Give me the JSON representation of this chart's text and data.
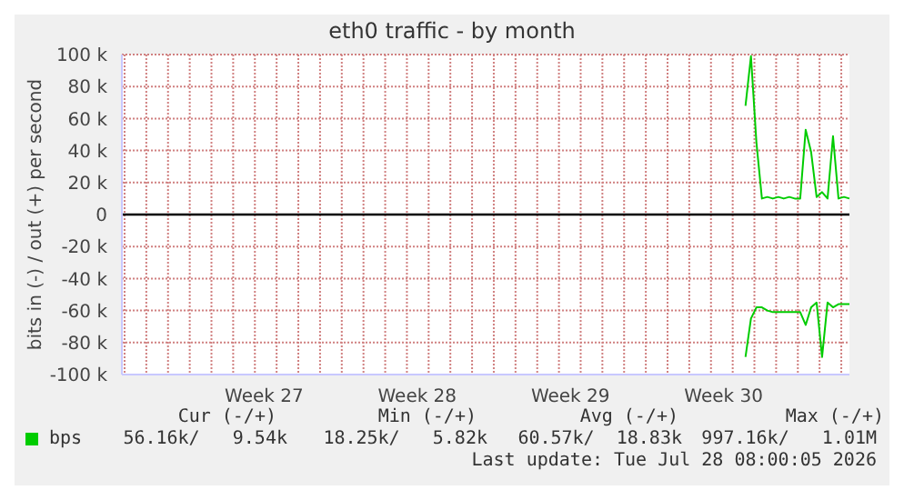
{
  "chart_data": {
    "type": "line",
    "title": "eth0 traffic - by month",
    "ylabel": "bits in (-) / out (+) per second",
    "categories": [
      null,
      null,
      null,
      null,
      null,
      null,
      null,
      null,
      null,
      null,
      null,
      null,
      null,
      null,
      null,
      null,
      null,
      null,
      null,
      null,
      null,
      null,
      null,
      null,
      null,
      null,
      "Week 27",
      null,
      null,
      null,
      null,
      null,
      null,
      null,
      null,
      null,
      null,
      null,
      null,
      null,
      null,
      null,
      null,
      null,
      null,
      null,
      null,
      null,
      null,
      null,
      null,
      null,
      null,
      null,
      "Week 28",
      null,
      null,
      null,
      null,
      null,
      null,
      null,
      null,
      null,
      null,
      null,
      null,
      null,
      null,
      null,
      null,
      null,
      null,
      null,
      null,
      null,
      null,
      null,
      null,
      null,
      null,
      null,
      "Week 29",
      null,
      null,
      null,
      null,
      null,
      null,
      null,
      null,
      null,
      null,
      null,
      null,
      null,
      null,
      null,
      null,
      null,
      null,
      null,
      null,
      null,
      null,
      null,
      null,
      null,
      null,
      null,
      "Week 30",
      null,
      null,
      null,
      null,
      null,
      null,
      null,
      null,
      null,
      null,
      null,
      null,
      null,
      null,
      null,
      null,
      null,
      null,
      null,
      null,
      null,
      null,
      null
    ],
    "ylim": [
      -100000,
      100000
    ],
    "yticks": [
      {
        "value": -100000,
        "label": "-100 k"
      },
      {
        "value": -80000,
        "label": "-80 k"
      },
      {
        "value": -60000,
        "label": "-60 k"
      },
      {
        "value": -40000,
        "label": "-40 k"
      },
      {
        "value": -20000,
        "label": "-20 k"
      },
      0,
      {
        "value": 20000,
        "label": "20 k"
      },
      {
        "value": 40000,
        "label": "40 k"
      },
      {
        "value": 60000,
        "label": "60 k"
      },
      {
        "value": 80000,
        "label": "80 k"
      },
      {
        "value": 100000,
        "label": "100 k"
      }
    ],
    "grid": true,
    "legend": "bottom",
    "marker": "none",
    "line_style": "solid",
    "ref_lines": [
      {
        "axis": "y",
        "value": 0,
        "color": "#000000"
      }
    ],
    "series": [
      {
        "name": "bps",
        "color": "#00cc00",
        "values": [
          null,
          null,
          null,
          null,
          null,
          null,
          null,
          null,
          null,
          null,
          null,
          null,
          null,
          null,
          null,
          null,
          null,
          null,
          null,
          null,
          null,
          null,
          null,
          null,
          null,
          null,
          null,
          null,
          null,
          null,
          null,
          null,
          null,
          null,
          null,
          null,
          null,
          null,
          null,
          null,
          null,
          null,
          null,
          null,
          null,
          null,
          null,
          null,
          null,
          null,
          null,
          null,
          null,
          null,
          null,
          null,
          null,
          null,
          null,
          null,
          null,
          null,
          null,
          null,
          null,
          null,
          null,
          null,
          null,
          null,
          null,
          null,
          null,
          null,
          null,
          null,
          null,
          null,
          null,
          null,
          null,
          null,
          null,
          null,
          null,
          null,
          null,
          null,
          null,
          null,
          null,
          null,
          null,
          null,
          null,
          null,
          null,
          null,
          null,
          null,
          null,
          null,
          null,
          null,
          null,
          null,
          null,
          null,
          null,
          null,
          null,
          null,
          null,
          null,
          68000,
          99000,
          45000,
          10000,
          11000,
          10000,
          11000,
          10000,
          11000,
          10000,
          10000,
          53000,
          39000,
          11000,
          14000,
          10000,
          49000,
          10000,
          11000,
          10000
        ]
      },
      {
        "color": "#00cc00",
        "values": [
          null,
          null,
          null,
          null,
          null,
          null,
          null,
          null,
          null,
          null,
          null,
          null,
          null,
          null,
          null,
          null,
          null,
          null,
          null,
          null,
          null,
          null,
          null,
          null,
          null,
          null,
          null,
          null,
          null,
          null,
          null,
          null,
          null,
          null,
          null,
          null,
          null,
          null,
          null,
          null,
          null,
          null,
          null,
          null,
          null,
          null,
          null,
          null,
          null,
          null,
          null,
          null,
          null,
          null,
          null,
          null,
          null,
          null,
          null,
          null,
          null,
          null,
          null,
          null,
          null,
          null,
          null,
          null,
          null,
          null,
          null,
          null,
          null,
          null,
          null,
          null,
          null,
          null,
          null,
          null,
          null,
          null,
          null,
          null,
          null,
          null,
          null,
          null,
          null,
          null,
          null,
          null,
          null,
          null,
          null,
          null,
          null,
          null,
          null,
          null,
          null,
          null,
          null,
          null,
          null,
          null,
          null,
          null,
          null,
          null,
          null,
          null,
          null,
          null,
          -89000,
          -65000,
          -58000,
          -58000,
          -60000,
          -61000,
          -61000,
          -61000,
          -61000,
          -61000,
          -61000,
          -69000,
          -58000,
          -55000,
          -89000,
          -55000,
          -58000,
          -56000,
          -56000,
          -56000
        ]
      }
    ],
    "annotations": [
      "Cur (-/+)",
      "Min (-/+)",
      "Avg (-/+)",
      "Max (-/+)",
      "56.16k/   9.54k",
      "18.25k/   5.82k",
      "60.57k/  18.83k",
      "997.16k/   1.01M",
      "Last update: Tue Jul 28 08:00:05 2026"
    ]
  }
}
